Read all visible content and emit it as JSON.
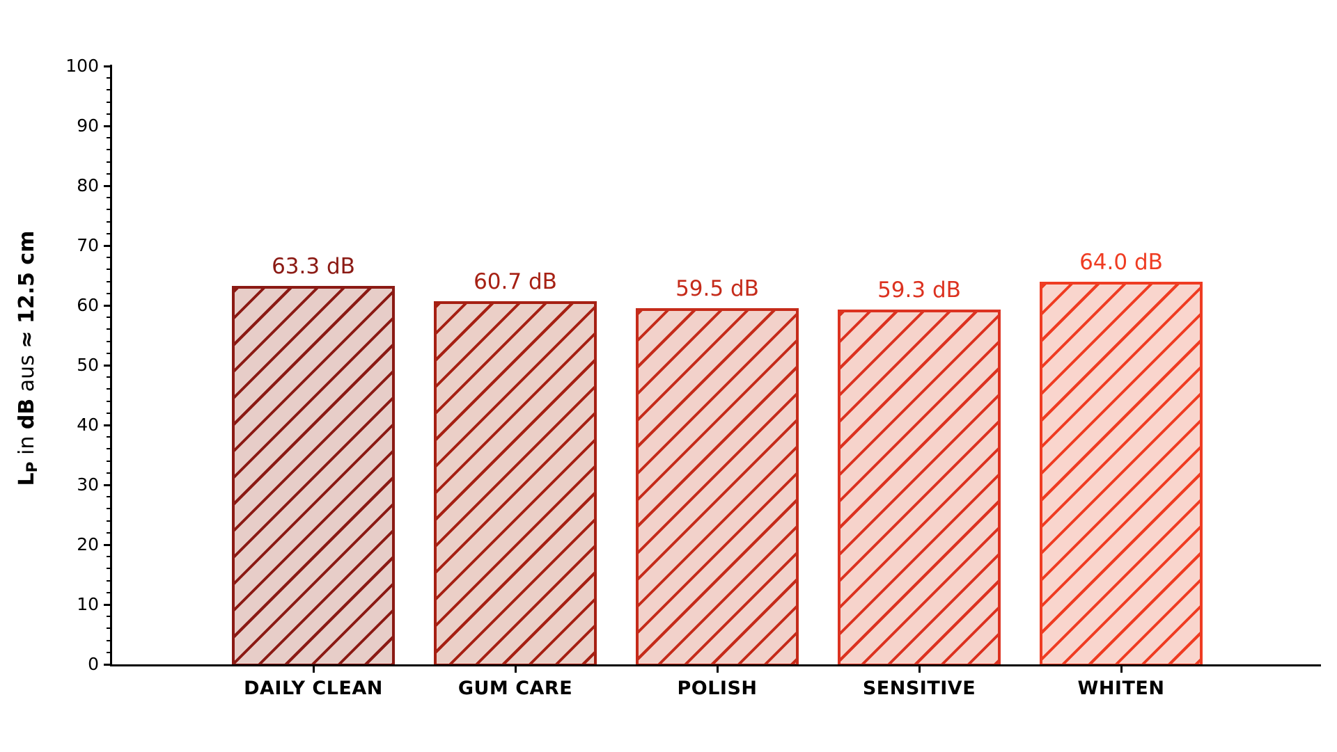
{
  "figure": {
    "background": "#ffffff",
    "text_color": "#000000"
  },
  "chart_data": {
    "type": "bar",
    "title": "",
    "xlabel": "",
    "ylabel": "Lₚ in dB aus ≈ 12.5 cm",
    "ylabel_parts": [
      {
        "text": "L",
        "bold": true,
        "subscript": false
      },
      {
        "text": "P",
        "bold": true,
        "subscript": true
      },
      {
        "text": " in ",
        "bold": false,
        "subscript": false
      },
      {
        "text": "dB",
        "bold": true,
        "subscript": false
      },
      {
        "text": " aus ",
        "bold": false,
        "subscript": false
      },
      {
        "text": "≈ 12.5 cm",
        "bold": true,
        "subscript": false
      }
    ],
    "categories": [
      "DAILY CLEAN",
      "GUM CARE",
      "POLISH",
      "SENSITIVE",
      "WHITEN"
    ],
    "values": [
      63.3,
      60.7,
      59.5,
      59.3,
      64.0
    ],
    "bar_labels": [
      "63.3 dB",
      "60.7 dB",
      "59.5 dB",
      "59.3 dB",
      "64.0 dB"
    ],
    "edge_colors": [
      "#8b1a14",
      "#a62013",
      "#c52b1a",
      "#dc3220",
      "#ef3c22"
    ],
    "fill_colors": [
      "#e7cdc8",
      "#ebcfc7",
      "#f2d1ca",
      "#f6d3cb",
      "#f9d5cd"
    ],
    "hatch": "/",
    "ylim": [
      0,
      100
    ],
    "ytick_major": [
      0,
      10,
      20,
      30,
      40,
      50,
      60,
      70,
      80,
      90,
      100
    ],
    "ytick_minor_step": 2,
    "grid": false,
    "legend": null
  }
}
